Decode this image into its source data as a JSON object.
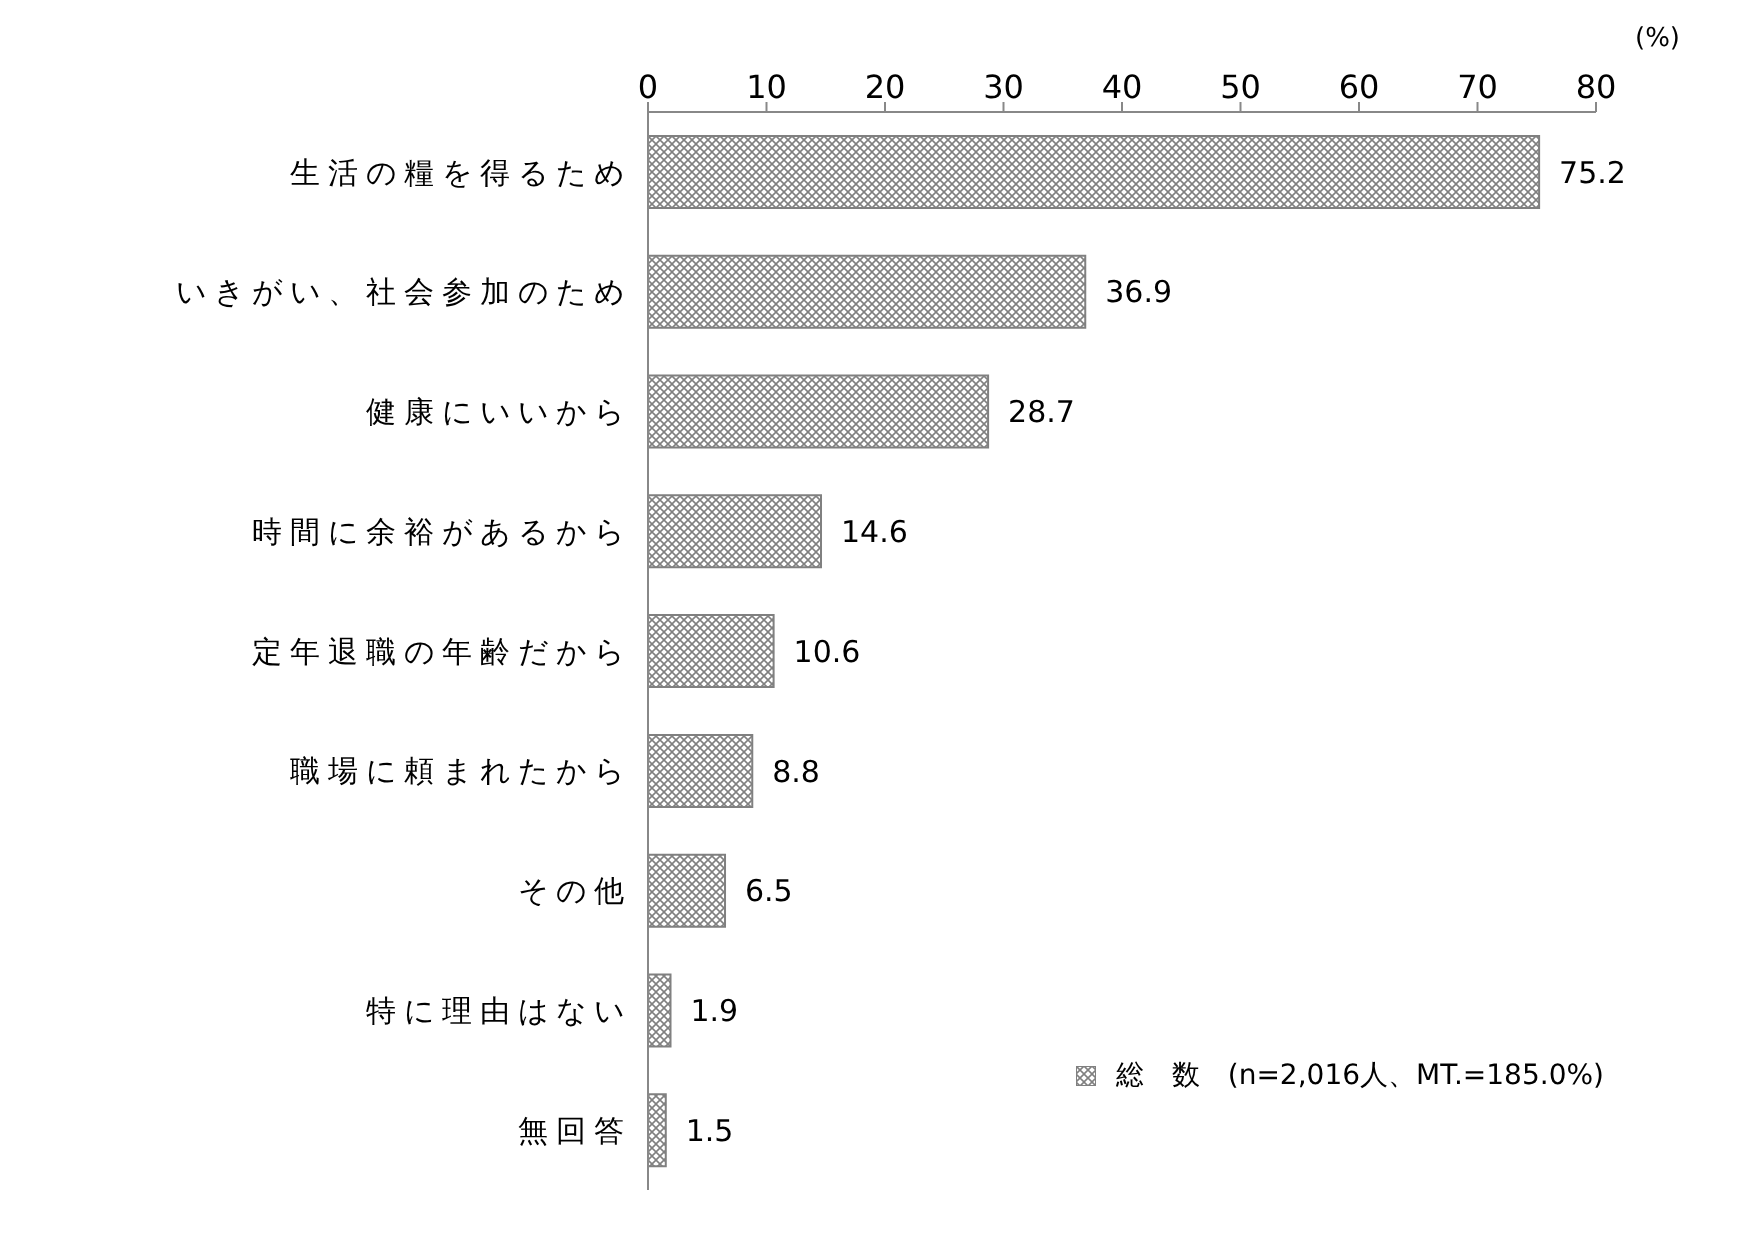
{
  "chart_data": {
    "type": "bar",
    "orientation": "horizontal",
    "xlabel": "(%)",
    "categories": [
      "生活の糧を得るため",
      "いきがい、社会参加のため",
      "健康にいいから",
      "時間に余裕があるから",
      "定年退職の年齢だから",
      "職場に頼まれたから",
      "その他",
      "特に理由はない",
      "無回答"
    ],
    "series": [
      {
        "name": "総　数　(n=2,016人、MT.=185.0%)",
        "color": "#808080",
        "values": [
          75.2,
          36.9,
          28.7,
          14.6,
          10.6,
          8.8,
          6.5,
          1.9,
          1.5
        ]
      }
    ],
    "xlim": [
      0,
      80
    ],
    "xticks": [
      0,
      10,
      20,
      30,
      40,
      50,
      60,
      70,
      80
    ],
    "data_labels": true,
    "grid": false,
    "legend": "bottom right"
  }
}
